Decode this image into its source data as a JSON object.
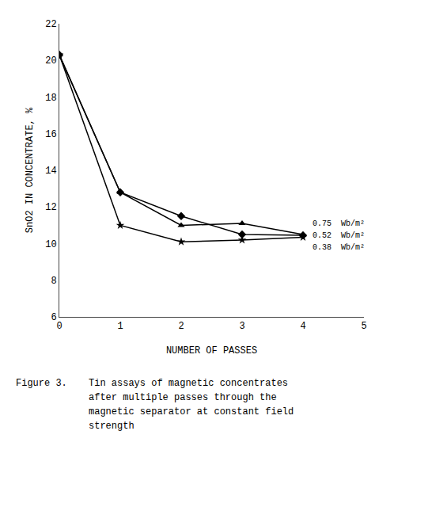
{
  "chart_data": {
    "type": "line",
    "xlabel": "NUMBER OF PASSES",
    "ylabel": "SnO2 IN CONCENTRATE, %",
    "series": [
      {
        "name": "0.75  Wb/m²",
        "color": "#000000",
        "marker": "triangle-up",
        "x": [
          0,
          1,
          2,
          3,
          4
        ],
        "values": [
          20.3,
          12.8,
          11.0,
          11.1,
          10.5
        ]
      },
      {
        "name": "0.52  Wb/m²",
        "color": "#000000",
        "marker": "diamond",
        "x": [
          0,
          1,
          2,
          3,
          4
        ],
        "values": [
          20.3,
          12.8,
          11.5,
          10.5,
          10.45
        ]
      },
      {
        "name": "0.38  Wb/m²",
        "color": "#000000",
        "marker": "star",
        "x": [
          0,
          1,
          2,
          3,
          4
        ],
        "values": [
          20.3,
          11.0,
          10.1,
          10.2,
          10.35
        ]
      }
    ],
    "xlim": [
      0,
      5
    ],
    "ylim": [
      6,
      22
    ],
    "xticks": [
      0,
      1,
      2,
      3,
      4,
      5
    ],
    "yticks": [
      6,
      8,
      10,
      12,
      14,
      16,
      18,
      20,
      22
    ],
    "grid": false,
    "caption": "Figure 3.",
    "caption_lines": [
      "Tin assays of magnetic concentrates",
      "after multiple passes through the",
      "magnetic separator at constant field",
      "strength"
    ]
  }
}
